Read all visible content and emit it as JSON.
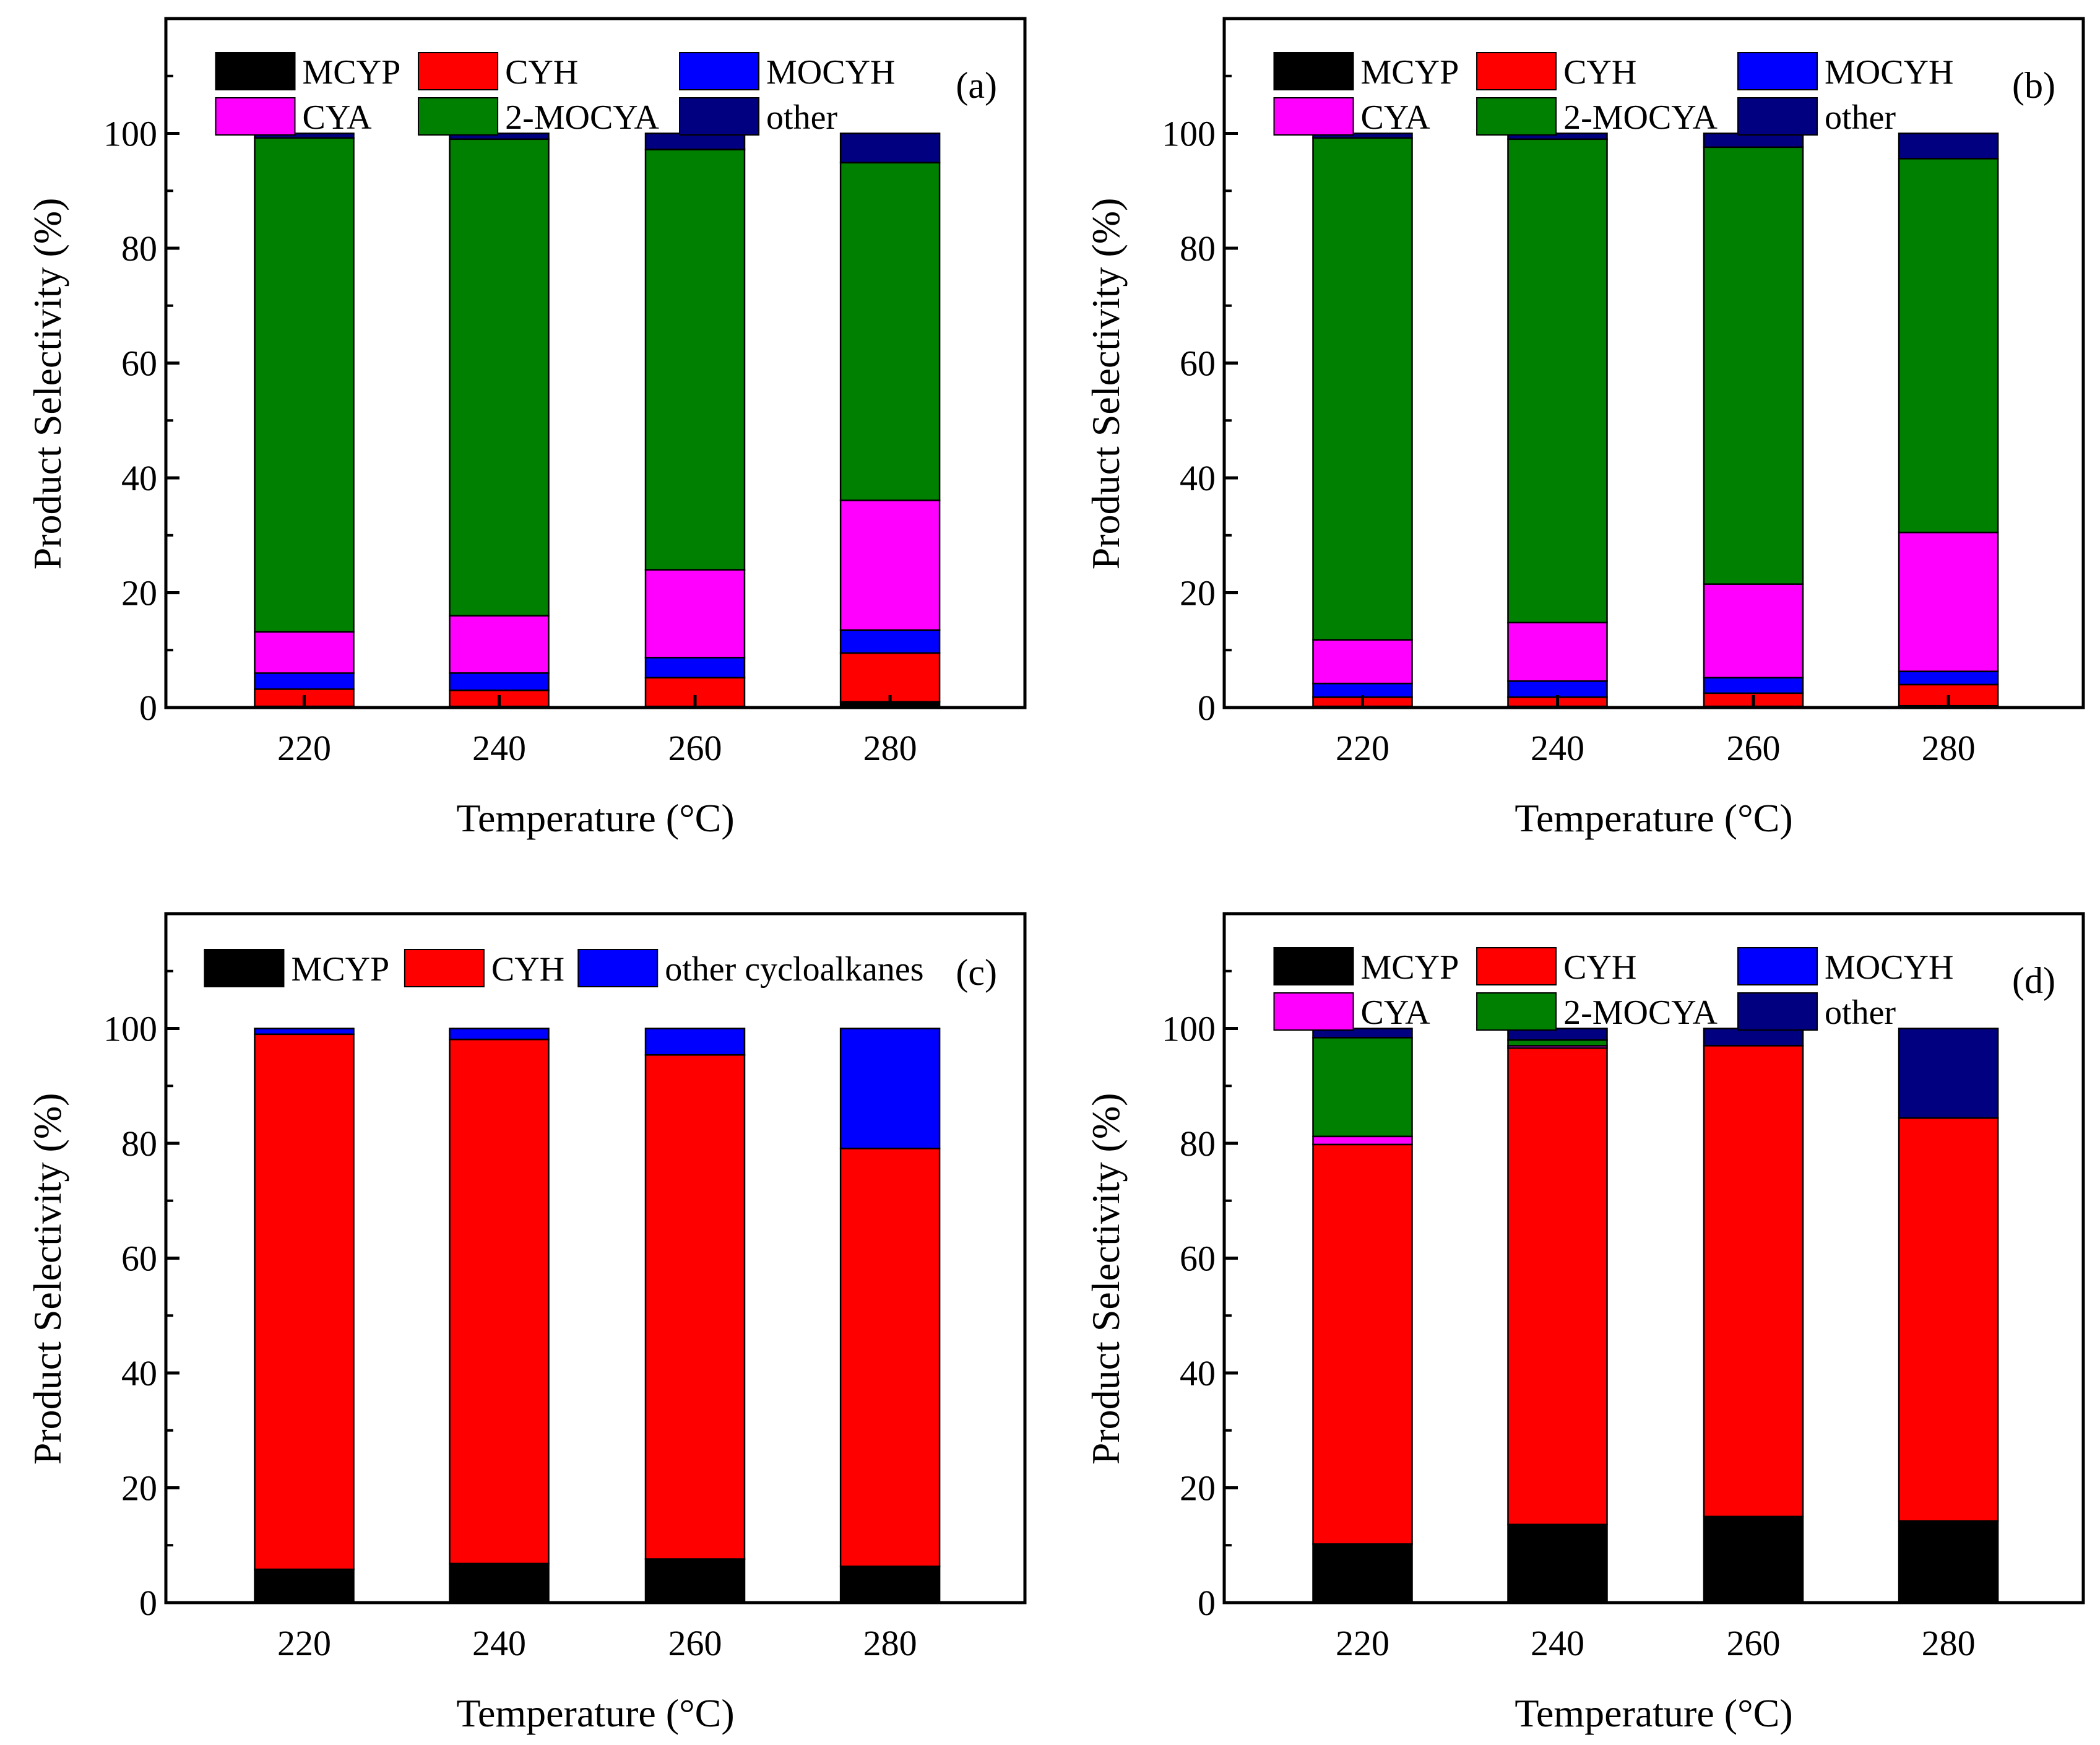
{
  "figure": {
    "description_free": true
  },
  "chart_data": [
    {
      "panel_label": "(a)",
      "type": "bar",
      "stacked": true,
      "categories": [
        "220",
        "240",
        "260",
        "280"
      ],
      "xlabel": "Temperature (°C)",
      "ylabel": "Product Selectivity (%)",
      "ylim": [
        0,
        120
      ],
      "yticks": [
        0,
        20,
        40,
        60,
        80,
        100
      ],
      "legend_position": "top",
      "series": [
        {
          "name": "MCYP",
          "color": "#000000",
          "values": [
            0.2,
            0.2,
            0.2,
            1.0
          ]
        },
        {
          "name": "CYH",
          "color": "#ff0000",
          "values": [
            3.0,
            2.8,
            5.0,
            8.5
          ]
        },
        {
          "name": "MOCYH",
          "color": "#0000ff",
          "values": [
            2.8,
            3.0,
            3.5,
            4.0
          ]
        },
        {
          "name": "CYA",
          "color": "#ff00ff",
          "values": [
            7.2,
            10.0,
            15.3,
            22.6
          ]
        },
        {
          "name": "2-MOCYA",
          "color": "#008000",
          "values": [
            86.0,
            83.0,
            73.2,
            58.8
          ]
        },
        {
          "name": "other",
          "color": "#000080",
          "values": [
            0.8,
            1.0,
            2.8,
            5.1
          ]
        }
      ]
    },
    {
      "panel_label": "(b)",
      "type": "bar",
      "stacked": true,
      "categories": [
        "220",
        "240",
        "260",
        "280"
      ],
      "xlabel": "Temperature (°C)",
      "ylabel": "Product Selectivity (%)",
      "ylim": [
        0,
        120
      ],
      "yticks": [
        0,
        20,
        40,
        60,
        80,
        100
      ],
      "legend_position": "top",
      "series": [
        {
          "name": "MCYP",
          "color": "#000000",
          "values": [
            0.2,
            0.2,
            0.2,
            0.3
          ]
        },
        {
          "name": "CYH",
          "color": "#ff0000",
          "values": [
            1.6,
            1.6,
            2.3,
            3.7
          ]
        },
        {
          "name": "MOCYH",
          "color": "#0000ff",
          "values": [
            2.4,
            2.8,
            2.7,
            2.3
          ]
        },
        {
          "name": "CYA",
          "color": "#ff00ff",
          "values": [
            7.6,
            10.2,
            16.3,
            24.2
          ]
        },
        {
          "name": "2-MOCYA",
          "color": "#008000",
          "values": [
            87.4,
            84.2,
            76.1,
            65.1
          ]
        },
        {
          "name": "other",
          "color": "#000080",
          "values": [
            0.8,
            1.0,
            2.4,
            4.4
          ]
        }
      ]
    },
    {
      "panel_label": "(c)",
      "type": "bar",
      "stacked": true,
      "categories": [
        "220",
        "240",
        "260",
        "280"
      ],
      "xlabel": "Temperature (°C)",
      "ylabel": "Product Selectivity (%)",
      "ylim": [
        0,
        120
      ],
      "yticks": [
        0,
        20,
        40,
        60,
        80,
        100
      ],
      "legend_position": "top",
      "series": [
        {
          "name": "MCYP",
          "color": "#000000",
          "values": [
            5.8,
            6.8,
            7.6,
            6.3
          ]
        },
        {
          "name": "CYH",
          "color": "#ff0000",
          "values": [
            93.2,
            91.3,
            87.8,
            72.8
          ]
        },
        {
          "name": "other cycloalkanes",
          "color": "#0000ff",
          "values": [
            1.0,
            1.9,
            4.6,
            20.9
          ]
        }
      ]
    },
    {
      "panel_label": "(d)",
      "type": "bar",
      "stacked": true,
      "categories": [
        "220",
        "240",
        "260",
        "280"
      ],
      "xlabel": "Temperature (°C)",
      "ylabel": "Product Selectivity (%)",
      "ylim": [
        0,
        120
      ],
      "yticks": [
        0,
        20,
        40,
        60,
        80,
        100
      ],
      "legend_position": "top",
      "series": [
        {
          "name": "MCYP",
          "color": "#000000",
          "values": [
            10.2,
            13.6,
            15.0,
            14.2
          ]
        },
        {
          "name": "CYH",
          "color": "#ff0000",
          "values": [
            69.6,
            83.0,
            82.0,
            70.2
          ]
        },
        {
          "name": "MOCYH",
          "color": "#0000ff",
          "values": [
            0.0,
            0.0,
            0.0,
            0.0
          ]
        },
        {
          "name": "CYA",
          "color": "#ff00ff",
          "values": [
            1.4,
            0.4,
            0.0,
            0.0
          ]
        },
        {
          "name": "2-MOCYA",
          "color": "#008000",
          "values": [
            17.2,
            1.0,
            0.0,
            0.0
          ]
        },
        {
          "name": "other",
          "color": "#000080",
          "values": [
            1.6,
            2.0,
            3.0,
            15.6
          ]
        }
      ]
    }
  ]
}
